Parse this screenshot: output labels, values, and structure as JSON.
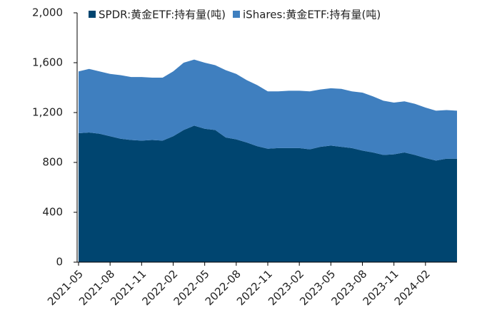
{
  "chart_data": {
    "type": "stacked_area",
    "categories": [
      "2021-05",
      null,
      null,
      "2021-08",
      null,
      null,
      "2021-11",
      null,
      null,
      "2022-02",
      null,
      null,
      "2022-05",
      null,
      null,
      "2022-08",
      null,
      null,
      "2022-11",
      null,
      null,
      "2023-02",
      null,
      null,
      "2023-05",
      null,
      null,
      "2023-08",
      null,
      null,
      "2023-11",
      null,
      null,
      "2024-02",
      null,
      null,
      null
    ],
    "series": [
      {
        "name": "SPDR:黄金ETF:持有量(吨)",
        "color": "#004570",
        "values": [
          1034,
          1040,
          1030,
          1010,
          990,
          980,
          975,
          980,
          975,
          1010,
          1060,
          1095,
          1070,
          1060,
          1000,
          985,
          960,
          930,
          910,
          915,
          915,
          915,
          905,
          925,
          935,
          925,
          915,
          895,
          880,
          860,
          865,
          880,
          860,
          835,
          815,
          830,
          830
        ]
      },
      {
        "name": "iShares:黄金ETF:持有量(吨)",
        "color": "#3f7fbf",
        "values": [
          496,
          510,
          500,
          500,
          510,
          505,
          510,
          500,
          505,
          520,
          540,
          530,
          530,
          520,
          540,
          525,
          500,
          490,
          460,
          455,
          460,
          460,
          465,
          460,
          460,
          465,
          455,
          465,
          450,
          435,
          415,
          410,
          410,
          405,
          400,
          390,
          385
        ]
      }
    ],
    "ylim": [
      0,
      2000
    ],
    "yticks": [
      0,
      400,
      800,
      {
        "value": 1200,
        "label": "1,200"
      },
      {
        "value": 1600,
        "label": "1,600"
      },
      {
        "value": 2000,
        "label": "2,000"
      }
    ],
    "legend": "top"
  }
}
